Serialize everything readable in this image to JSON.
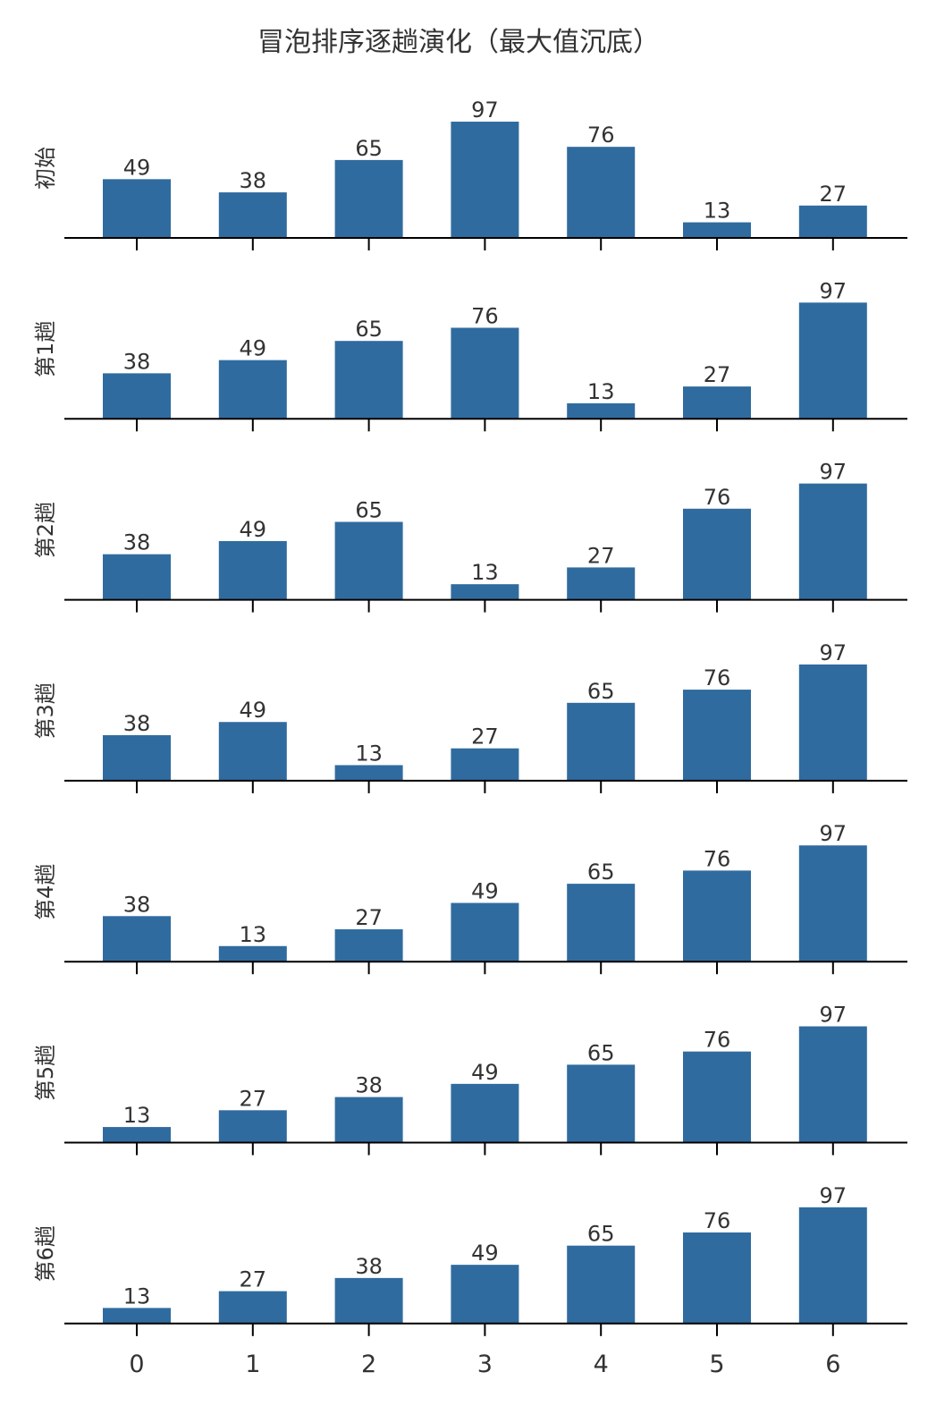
{
  "colors": {
    "bar": "#306b9f",
    "axis": "#000000",
    "text": "#333333"
  },
  "chart_data": {
    "type": "bar",
    "title": "冒泡排序逐趟演化（最大值沉底）",
    "categories": [
      "0",
      "1",
      "2",
      "3",
      "4",
      "5",
      "6"
    ],
    "ylim": [
      0,
      100
    ],
    "grid": false,
    "legend": "none",
    "series": [
      {
        "name": "初始",
        "values": [
          49,
          38,
          65,
          97,
          76,
          13,
          27
        ]
      },
      {
        "name": "第1趟",
        "values": [
          38,
          49,
          65,
          76,
          13,
          27,
          97
        ]
      },
      {
        "name": "第2趟",
        "values": [
          38,
          49,
          65,
          13,
          27,
          76,
          97
        ]
      },
      {
        "name": "第3趟",
        "values": [
          38,
          49,
          13,
          27,
          65,
          76,
          97
        ]
      },
      {
        "name": "第4趟",
        "values": [
          38,
          13,
          27,
          49,
          65,
          76,
          97
        ]
      },
      {
        "name": "第5趟",
        "values": [
          13,
          27,
          38,
          49,
          65,
          76,
          97
        ]
      },
      {
        "name": "第6趟",
        "values": [
          13,
          27,
          38,
          49,
          65,
          76,
          97
        ]
      }
    ]
  }
}
